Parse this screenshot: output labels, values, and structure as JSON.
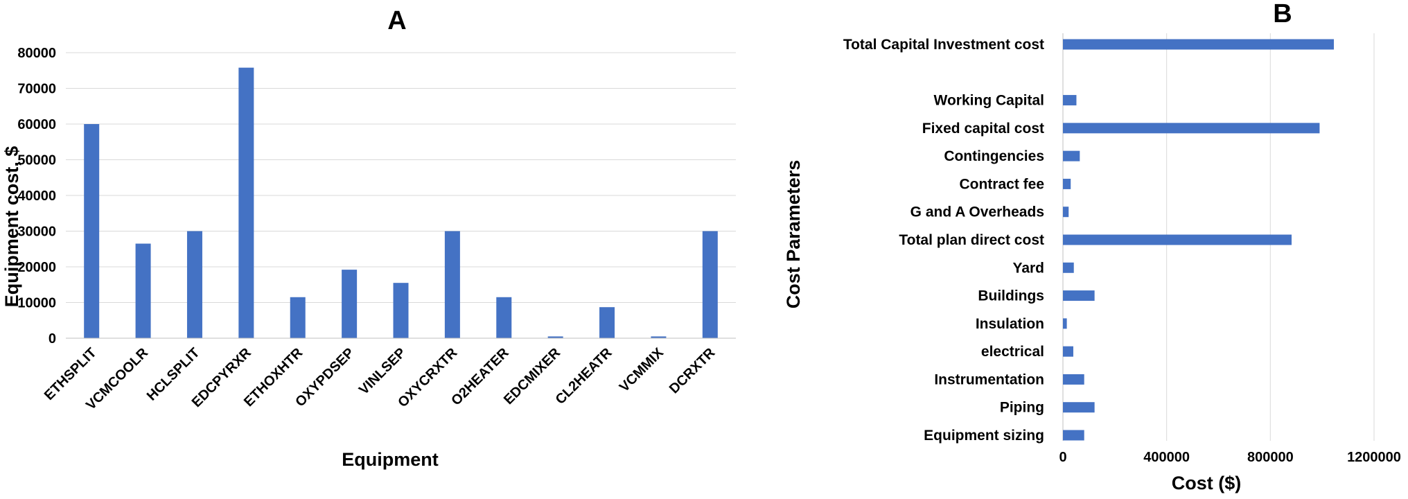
{
  "chart_data": [
    {
      "type": "bar",
      "panel_label": "A",
      "xlabel": "Equipment",
      "ylabel": "Equipment cost, $",
      "ylim": [
        0,
        80000
      ],
      "yticks": [
        "0",
        "10000",
        "20000",
        "30000",
        "40000",
        "50000",
        "60000",
        "70000",
        "80000"
      ],
      "grid": true,
      "color": "#4472C4",
      "categories": [
        "ETHSPLIT",
        "VCMCOOLR",
        "HCLSPLIT",
        "EDCPYRXR",
        "ETHOXHTR",
        "OXYPDSEP",
        "VINLSEP",
        "OXYCRXTR",
        "O2HEATER",
        "EDCMIXER",
        "CL2HEATR",
        "VCMMIX",
        "DCRXTR"
      ],
      "values": [
        60000,
        26500,
        30000,
        75800,
        11500,
        19200,
        15500,
        30000,
        11500,
        500,
        8700,
        500,
        30000
      ]
    },
    {
      "type": "bar",
      "orientation": "horizontal",
      "panel_label": "B",
      "xlabel": "Cost ($)",
      "ylabel": "Cost Parameters",
      "xlim": [
        0,
        1200000
      ],
      "xticks": [
        "0",
        "400000",
        "800000",
        "1200000"
      ],
      "grid": true,
      "color": "#4472C4",
      "categories": [
        "Total Capital Investment cost",
        "",
        "Working Capital",
        "Fixed capital cost",
        "Contingencies",
        "Contract fee",
        "G and A Overheads",
        "Total plan direct cost",
        "Yard",
        "Buildings",
        "Insulation",
        "electrical",
        "Instrumentation",
        "Piping",
        "Equipment sizing"
      ],
      "values": [
        1045000,
        0,
        52000,
        990000,
        65000,
        30000,
        22000,
        882000,
        42000,
        122000,
        15000,
        40000,
        82000,
        122000,
        82000
      ]
    }
  ]
}
